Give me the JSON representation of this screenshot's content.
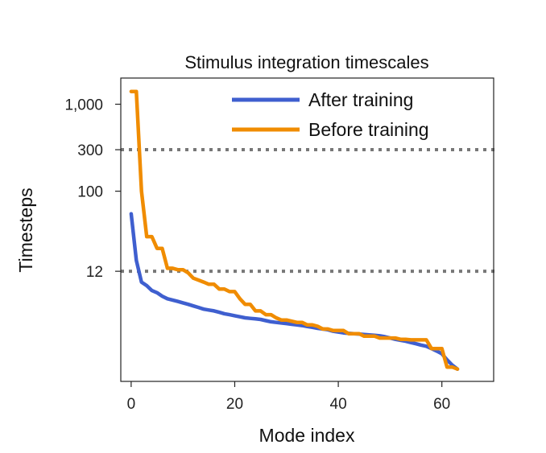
{
  "chart_data": {
    "type": "line",
    "title": "Stimulus integration timescales",
    "xlabel": "Mode index",
    "ylabel": "Timesteps",
    "xlim": [
      -2,
      70
    ],
    "x_ticks": [
      {
        "value": 0,
        "label": "0"
      },
      {
        "value": 20,
        "label": "20"
      },
      {
        "value": 40,
        "label": "40"
      },
      {
        "value": 60,
        "label": "60"
      }
    ],
    "y_scale": "log",
    "ylim": [
      0.65,
      2000
    ],
    "y_ticks": [
      {
        "value": 12,
        "label": "12"
      },
      {
        "value": 100,
        "label": "100"
      },
      {
        "value": 300,
        "label": "300"
      },
      {
        "value": 1000,
        "label": "1,000"
      }
    ],
    "reference_lines": [
      {
        "value": 300,
        "style": "dotted",
        "color": "#777777"
      },
      {
        "value": 12,
        "style": "dotted",
        "color": "#777777"
      }
    ],
    "grid": false,
    "legend_position": "top-right",
    "series": [
      {
        "name": "After training",
        "color": "#3f5fcf",
        "x": [
          0,
          1,
          2,
          3,
          4,
          5,
          6,
          7,
          8,
          9,
          10,
          11,
          12,
          13,
          14,
          15,
          16,
          17,
          18,
          19,
          20,
          21,
          22,
          23,
          24,
          25,
          26,
          27,
          28,
          29,
          30,
          31,
          32,
          33,
          34,
          35,
          36,
          37,
          38,
          39,
          40,
          41,
          42,
          43,
          44,
          45,
          46,
          47,
          48,
          49,
          50,
          51,
          52,
          53,
          54,
          55,
          56,
          57,
          58,
          59,
          60,
          61,
          62,
          63
        ],
        "values": [
          55,
          16,
          9,
          8.2,
          7.2,
          6.8,
          6.2,
          5.8,
          5.6,
          5.4,
          5.2,
          5.0,
          4.8,
          4.6,
          4.4,
          4.3,
          4.2,
          4.05,
          3.9,
          3.8,
          3.7,
          3.6,
          3.5,
          3.45,
          3.4,
          3.35,
          3.25,
          3.15,
          3.1,
          3.05,
          3.0,
          2.95,
          2.9,
          2.85,
          2.78,
          2.72,
          2.65,
          2.6,
          2.55,
          2.45,
          2.4,
          2.35,
          2.32,
          2.3,
          2.28,
          2.25,
          2.22,
          2.2,
          2.17,
          2.12,
          2.05,
          1.98,
          1.93,
          1.88,
          1.82,
          1.76,
          1.7,
          1.65,
          1.55,
          1.45,
          1.35,
          1.15,
          1.0,
          0.9
        ]
      },
      {
        "name": "Before training",
        "color": "#f08c00",
        "x": [
          0,
          1,
          2,
          3,
          4,
          5,
          6,
          7,
          8,
          9,
          10,
          11,
          12,
          13,
          14,
          15,
          16,
          17,
          18,
          19,
          20,
          21,
          22,
          23,
          24,
          25,
          26,
          27,
          28,
          29,
          30,
          31,
          32,
          33,
          34,
          35,
          36,
          37,
          38,
          39,
          40,
          41,
          42,
          43,
          44,
          45,
          46,
          47,
          48,
          49,
          50,
          51,
          52,
          53,
          54,
          55,
          56,
          57,
          58,
          59,
          60,
          61,
          62,
          63
        ],
        "values": [
          1400,
          1400,
          100,
          30,
          30,
          22,
          22,
          13,
          13,
          12.5,
          12.5,
          11.5,
          10,
          9.5,
          9,
          8.5,
          8.5,
          7.5,
          7.5,
          7,
          7,
          5.8,
          5,
          5,
          4.2,
          4.2,
          3.8,
          3.8,
          3.5,
          3.3,
          3.3,
          3.2,
          3.1,
          3.1,
          2.9,
          2.9,
          2.8,
          2.6,
          2.6,
          2.5,
          2.5,
          2.5,
          2.3,
          2.3,
          2.3,
          2.15,
          2.15,
          2.15,
          2.05,
          2.05,
          2.05,
          2.05,
          1.98,
          1.98,
          1.95,
          1.95,
          1.95,
          1.95,
          1.55,
          1.55,
          1.55,
          0.95,
          0.95,
          0.9
        ]
      }
    ]
  }
}
